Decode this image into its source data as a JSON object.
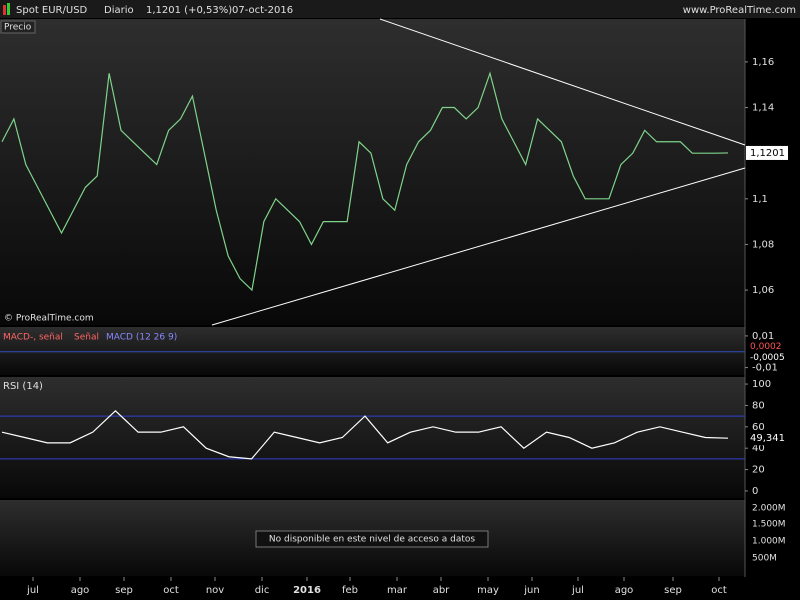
{
  "header": {
    "instrument": "Spot EUR/USD",
    "period": "Diario",
    "price": "1,1201 (+0,53%)",
    "date": "07-oct-2016",
    "site": "www.ProRealTime.com"
  },
  "price_panel": {
    "type": "line",
    "label": "Precio",
    "watermark": "© ProRealTime.com",
    "color": "#7fd38a",
    "ylim": [
      1.0447,
      1.1788
    ],
    "yticks": [
      {
        "value": 1.16,
        "label": "1,16"
      },
      {
        "value": 1.14,
        "label": "1,14"
      },
      {
        "value": 1.1,
        "label": "1,1"
      },
      {
        "value": 1.08,
        "label": "1,08"
      },
      {
        "value": 1.06,
        "label": "1,06"
      }
    ],
    "last": {
      "value": 1.1201,
      "label": "1,1201"
    },
    "values": [
      1.125,
      1.135,
      1.115,
      1.105,
      1.095,
      1.085,
      1.095,
      1.105,
      1.11,
      1.155,
      1.13,
      1.125,
      1.12,
      1.115,
      1.13,
      1.135,
      1.145,
      1.12,
      1.095,
      1.075,
      1.065,
      1.06,
      1.09,
      1.1,
      1.095,
      1.09,
      1.08,
      1.09,
      1.09,
      1.09,
      1.125,
      1.12,
      1.1,
      1.095,
      1.115,
      1.125,
      1.13,
      1.14,
      1.14,
      1.135,
      1.14,
      1.155,
      1.135,
      1.125,
      1.115,
      1.135,
      1.13,
      1.125,
      1.11,
      1.1,
      1.1,
      1.1,
      1.115,
      1.12,
      1.13,
      1.125,
      1.125,
      1.125,
      1.12,
      1.12,
      1.12,
      1.1201
    ]
  },
  "macd_panel": {
    "labels": [
      "MACD-, señal",
      "Señal",
      "MACD (12 26 9)"
    ],
    "ylim": [
      -0.01469,
      0.01563
    ],
    "yticks": [
      {
        "value": 0.01,
        "label": "0,01"
      },
      {
        "value": -0.01,
        "label": "-0,01"
      }
    ],
    "markers": [
      {
        "value": 0.0002,
        "label": "0,0002"
      },
      {
        "value": -0.0005,
        "label": "-0,0005"
      }
    ]
  },
  "rsi_panel": {
    "type": "line",
    "label": "RSI (14)",
    "color": "#ffffff",
    "ylim": [
      -6.6,
      106.6
    ],
    "yticks": [
      0,
      20,
      40,
      60,
      80,
      100
    ],
    "levels": [
      70,
      30
    ],
    "last": {
      "value": 49.341,
      "label": "49,341"
    },
    "values": [
      55,
      50,
      45,
      45,
      55,
      75,
      55,
      55,
      60,
      40,
      32,
      30,
      55,
      50,
      45,
      50,
      70,
      45,
      55,
      60,
      55,
      55,
      60,
      40,
      55,
      50,
      40,
      45,
      55,
      60,
      55,
      50,
      49.341
    ]
  },
  "volume_panel": {
    "ticks": [
      "2.000M",
      "1.500M",
      "1.000M",
      "500M"
    ],
    "message": "No disponible en este nivel de acceso a datos"
  },
  "x_axis": {
    "labels": [
      "jul",
      "ago",
      "sep",
      "oct",
      "nov",
      "dic",
      "2016",
      "feb",
      "mar",
      "abr",
      "may",
      "jun",
      "jul",
      "ago",
      "sep",
      "oct"
    ]
  }
}
